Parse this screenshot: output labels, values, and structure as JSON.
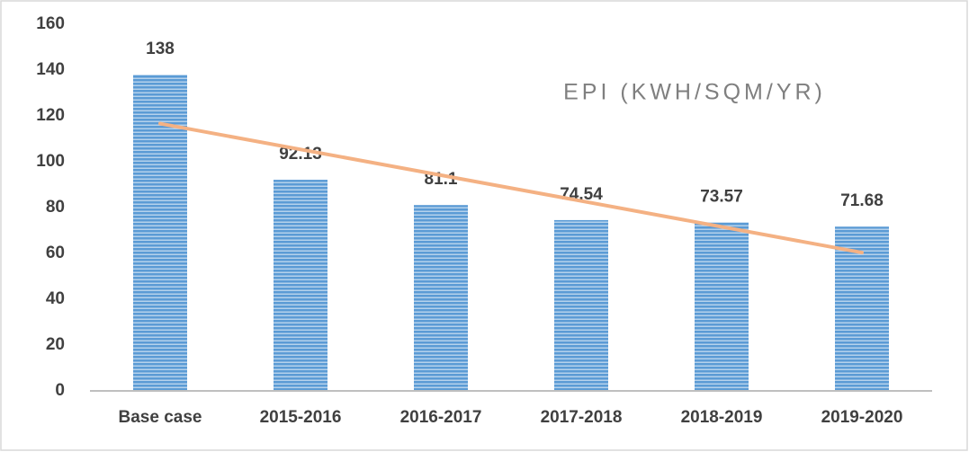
{
  "chart_data": {
    "type": "bar",
    "title": "EPI (KWH/SQM/YR)",
    "categories": [
      "Base case",
      "2015-2016",
      "2016-2017",
      "2017-2018",
      "2018-2019",
      "2019-2020"
    ],
    "values": [
      138,
      92.13,
      81.1,
      74.54,
      73.57,
      71.68
    ],
    "color": "#5b9bd5",
    "ylim": [
      0,
      160
    ],
    "yticks": [
      0,
      20,
      40,
      60,
      80,
      100,
      120,
      140,
      160
    ],
    "grid": false,
    "trendline": "linear",
    "trendline_color": "#f4b183"
  }
}
